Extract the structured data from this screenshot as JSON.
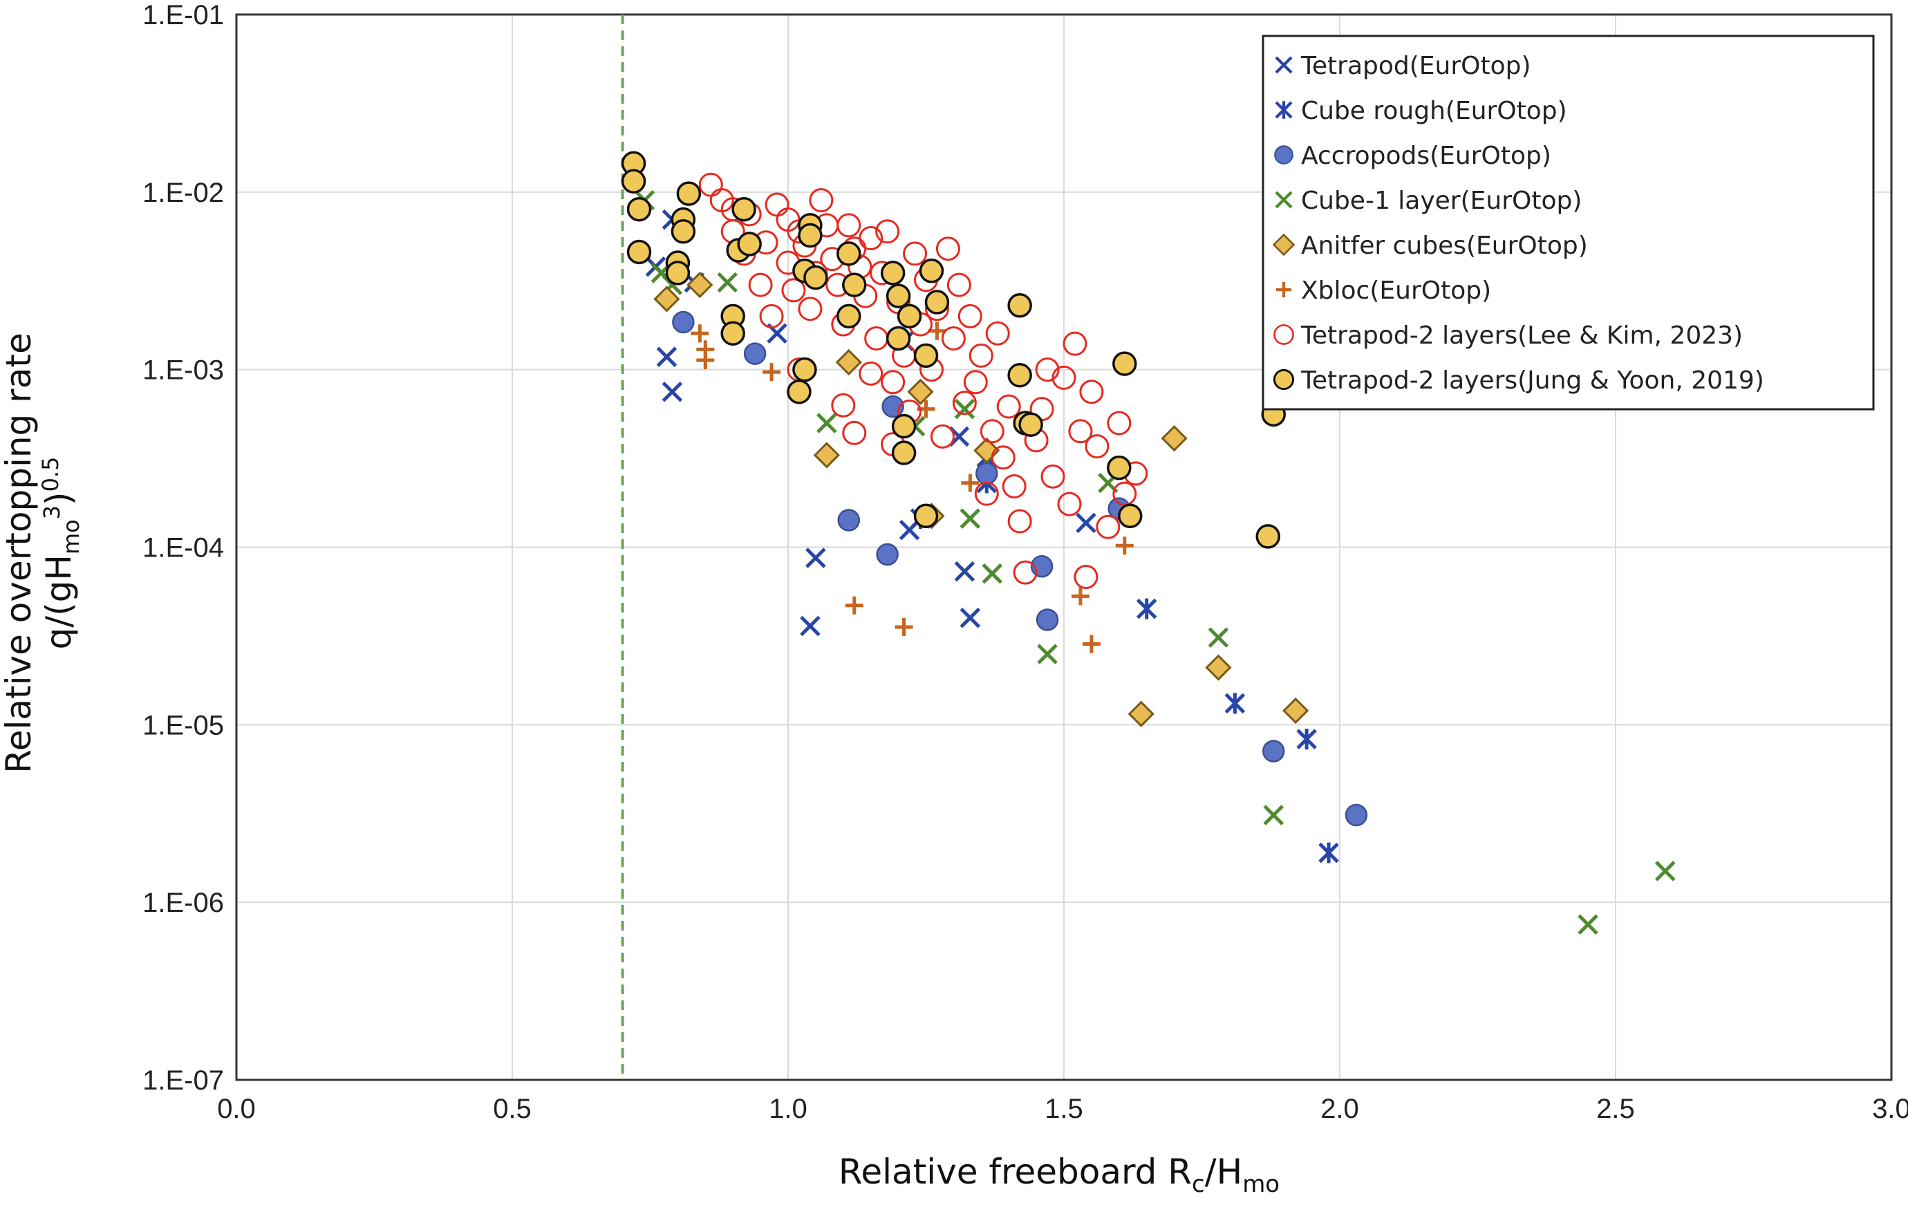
{
  "chart_data": {
    "type": "scatter",
    "xlabel": "Relative freeboard R_c/H_mo",
    "xlabel_parts": {
      "main": "Relative freeboard R",
      "sub1": "c",
      "slash": "/H",
      "sub2": "mo"
    },
    "ylabel": "Relative overtopping rate q/(gH_mo^3)^0.5",
    "ylabel_line1": "Relative overtopping rate",
    "ylabel_line2_parts": {
      "a": "q/(gH",
      "sub": "mo",
      "sup1": "3",
      "b": ")",
      "sup2": "0.5"
    },
    "xlim": [
      0.0,
      3.0
    ],
    "ylim": [
      1e-07,
      0.1
    ],
    "yscale": "log",
    "grid": true,
    "legend_position": "top-right",
    "x_ticks": [
      "0.0",
      "0.5",
      "1.0",
      "1.5",
      "2.0",
      "2.5",
      "3.0"
    ],
    "y_ticks": [
      "1.E-01",
      "1.E-02",
      "1.E-03",
      "1.E-04",
      "1.E-05",
      "1.E-06",
      "1.E-07"
    ],
    "reference_line": {
      "x": 0.7,
      "style": "dashed",
      "color": "#6aa84f"
    },
    "series": [
      {
        "name": "Tetrapod(EurOtop)",
        "marker": "x",
        "color": "#2846a8",
        "points": [
          [
            0.76,
            0.0038
          ],
          [
            0.79,
            0.007
          ],
          [
            0.78,
            0.00118
          ],
          [
            0.79,
            0.00075
          ],
          [
            0.83,
            0.0031
          ],
          [
            0.98,
            0.0016
          ],
          [
            1.04,
            3.6e-05
          ],
          [
            1.05,
            8.7e-05
          ],
          [
            1.21,
            0.00145
          ],
          [
            1.22,
            0.000125
          ],
          [
            1.31,
            0.00042
          ],
          [
            1.32,
            7.3e-05
          ],
          [
            1.33,
            4e-05
          ],
          [
            1.36,
            0.00032
          ],
          [
            1.54,
            0.000137
          ]
        ]
      },
      {
        "name": "Cube rough(EurOtop)",
        "marker": "asterisk",
        "color": "#2846a8",
        "points": [
          [
            1.24,
            0.000145
          ],
          [
            1.36,
            0.00023
          ],
          [
            1.65,
            4.5e-05
          ],
          [
            1.81,
            1.32e-05
          ],
          [
            1.94,
            8.3e-06
          ],
          [
            1.98,
            1.9e-06
          ]
        ]
      },
      {
        "name": "Accropods(EurOtop)",
        "marker": "circle",
        "color": "#5a73c4",
        "points": [
          [
            0.81,
            0.00185
          ],
          [
            0.94,
            0.00123
          ],
          [
            1.11,
            0.000142
          ],
          [
            1.18,
            9.1e-05
          ],
          [
            1.19,
            0.00062
          ],
          [
            1.36,
            0.00026
          ],
          [
            1.46,
            7.8e-05
          ],
          [
            1.47,
            3.9e-05
          ],
          [
            1.6,
            0.000165
          ],
          [
            1.88,
            7.1e-06
          ],
          [
            2.03,
            3.1e-06
          ]
        ]
      },
      {
        "name": "Cube-1 layer(EurOtop)",
        "marker": "x",
        "color": "#4e8a2e",
        "points": [
          [
            0.74,
            0.009
          ],
          [
            0.77,
            0.0035
          ],
          [
            0.79,
            0.003
          ],
          [
            0.89,
            0.0031
          ],
          [
            1.07,
            0.0005
          ],
          [
            1.23,
            0.00048
          ],
          [
            1.32,
            0.0006
          ],
          [
            1.33,
            0.000145
          ],
          [
            1.37,
            7.1e-05
          ],
          [
            1.47,
            2.5e-05
          ],
          [
            1.58,
            0.00023
          ],
          [
            1.78,
            3.1e-05
          ],
          [
            1.88,
            3.1e-06
          ],
          [
            2.45,
            7.5e-07
          ],
          [
            2.59,
            1.5e-06
          ]
        ]
      },
      {
        "name": "Anitfer cubes(EurOtop)",
        "marker": "diamond",
        "color": "#e8bc52",
        "points": [
          [
            0.78,
            0.0025
          ],
          [
            0.84,
            0.003
          ],
          [
            1.07,
            0.00033
          ],
          [
            1.11,
            0.0011
          ],
          [
            1.24,
            0.00075
          ],
          [
            1.26,
            0.00015
          ],
          [
            1.36,
            0.00035
          ],
          [
            1.64,
            1.15e-05
          ],
          [
            1.7,
            0.00041
          ],
          [
            1.78,
            2.1e-05
          ],
          [
            1.92,
            1.2e-05
          ]
        ]
      },
      {
        "name": "Xbloc(EurOtop)",
        "marker": "plus",
        "color": "#c8641e",
        "points": [
          [
            0.84,
            0.0016
          ],
          [
            0.85,
            0.0013
          ],
          [
            0.85,
            0.00113
          ],
          [
            0.97,
            0.00097
          ],
          [
            1.12,
            4.7e-05
          ],
          [
            1.21,
            3.55e-05
          ],
          [
            1.25,
            0.0006
          ],
          [
            1.27,
            0.00165
          ],
          [
            1.33,
            0.00023
          ],
          [
            1.53,
            5.3e-05
          ],
          [
            1.55,
            2.85e-05
          ],
          [
            1.61,
            0.000102
          ]
        ]
      },
      {
        "name": "Tetrapod-2 layers(Lee & Kim, 2023)",
        "marker": "open-circle",
        "color": "#e8281e",
        "points": [
          [
            0.86,
            0.011
          ],
          [
            0.88,
            0.009
          ],
          [
            0.9,
            0.006
          ],
          [
            0.92,
            0.0045
          ],
          [
            0.95,
            0.003
          ],
          [
            0.96,
            0.0052
          ],
          [
            0.97,
            0.002
          ],
          [
            0.98,
            0.0085
          ],
          [
            1.0,
            0.007
          ],
          [
            1.0,
            0.004
          ],
          [
            1.01,
            0.0028
          ],
          [
            1.02,
            0.006
          ],
          [
            1.03,
            0.005
          ],
          [
            1.04,
            0.0022
          ],
          [
            1.05,
            0.0035
          ],
          [
            1.06,
            0.009
          ],
          [
            1.07,
            0.0065
          ],
          [
            1.08,
            0.0042
          ],
          [
            1.09,
            0.003
          ],
          [
            1.1,
            0.0018
          ],
          [
            1.11,
            0.0065
          ],
          [
            1.12,
            0.0048
          ],
          [
            1.13,
            0.0038
          ],
          [
            1.14,
            0.0026
          ],
          [
            1.15,
            0.0055
          ],
          [
            1.16,
            0.0015
          ],
          [
            1.17,
            0.0035
          ],
          [
            1.18,
            0.006
          ],
          [
            1.19,
            0.00085
          ],
          [
            1.2,
            0.0024
          ],
          [
            1.21,
            0.0012
          ],
          [
            1.22,
            0.00058
          ],
          [
            1.23,
            0.0045
          ],
          [
            1.24,
            0.0018
          ],
          [
            1.25,
            0.0032
          ],
          [
            1.26,
            0.001
          ],
          [
            1.27,
            0.0022
          ],
          [
            1.28,
            0.00042
          ],
          [
            1.29,
            0.0048
          ],
          [
            1.3,
            0.0015
          ],
          [
            1.31,
            0.003
          ],
          [
            1.32,
            0.00065
          ],
          [
            1.33,
            0.002
          ],
          [
            1.34,
            0.00085
          ],
          [
            1.35,
            0.0012
          ],
          [
            1.36,
            0.0002
          ],
          [
            1.37,
            0.00045
          ],
          [
            1.38,
            0.0016
          ],
          [
            1.39,
            0.00032
          ],
          [
            1.4,
            0.00062
          ],
          [
            1.41,
            0.00022
          ],
          [
            1.42,
            0.00014
          ],
          [
            1.43,
            7.2e-05
          ],
          [
            1.45,
            0.0004
          ],
          [
            1.46,
            0.0006
          ],
          [
            1.47,
            0.001
          ],
          [
            1.48,
            0.00025
          ],
          [
            1.5,
            0.0009
          ],
          [
            1.51,
            0.000175
          ],
          [
            1.52,
            0.0014
          ],
          [
            1.53,
            0.00045
          ],
          [
            1.54,
            6.8e-05
          ],
          [
            1.55,
            0.00075
          ],
          [
            1.56,
            0.00037
          ],
          [
            1.58,
            0.00013
          ],
          [
            1.6,
            0.0005
          ],
          [
            1.61,
            0.0002
          ],
          [
            1.63,
            0.00026
          ],
          [
            1.02,
            0.001
          ],
          [
            1.12,
            0.00044
          ],
          [
            1.19,
            0.00038
          ],
          [
            1.1,
            0.00063
          ],
          [
            1.15,
            0.00095
          ],
          [
            0.9,
            0.008
          ],
          [
            0.93,
            0.0075
          ]
        ]
      },
      {
        "name": "Tetrapod-2 layers(Jung & Yoon, 2019)",
        "marker": "filled-circle-black",
        "color": "#f0c85a",
        "points": [
          [
            0.72,
            0.0145
          ],
          [
            0.72,
            0.0115
          ],
          [
            0.73,
            0.008
          ],
          [
            0.73,
            0.0046
          ],
          [
            0.8,
            0.004
          ],
          [
            0.8,
            0.0035
          ],
          [
            0.81,
            0.007
          ],
          [
            0.81,
            0.006
          ],
          [
            0.82,
            0.0098
          ],
          [
            0.9,
            0.002
          ],
          [
            0.9,
            0.0016
          ],
          [
            0.91,
            0.0047
          ],
          [
            0.92,
            0.008
          ],
          [
            0.93,
            0.0051
          ],
          [
            1.02,
            0.00075
          ],
          [
            1.03,
            0.0036
          ],
          [
            1.04,
            0.0065
          ],
          [
            1.04,
            0.0057
          ],
          [
            1.05,
            0.0033
          ],
          [
            1.11,
            0.0045
          ],
          [
            1.11,
            0.002
          ],
          [
            1.12,
            0.003
          ],
          [
            1.19,
            0.0035
          ],
          [
            1.2,
            0.0026
          ],
          [
            1.2,
            0.0015
          ],
          [
            1.21,
            0.00048
          ],
          [
            1.21,
            0.00034
          ],
          [
            1.22,
            0.002
          ],
          [
            1.25,
            0.0012
          ],
          [
            1.25,
            0.00015
          ],
          [
            1.26,
            0.0036
          ],
          [
            1.27,
            0.0024
          ],
          [
            1.42,
            0.0023
          ],
          [
            1.42,
            0.00093
          ],
          [
            1.43,
            0.0005
          ],
          [
            1.44,
            0.00049
          ],
          [
            1.6,
            0.00028
          ],
          [
            1.61,
            0.00108
          ],
          [
            1.62,
            0.00015
          ],
          [
            1.87,
            0.000115
          ],
          [
            1.88,
            0.00056
          ],
          [
            1.03,
            0.001
          ]
        ]
      }
    ]
  }
}
